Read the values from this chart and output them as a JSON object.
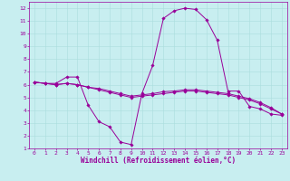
{
  "background_color": "#c8eef0",
  "line_color": "#990099",
  "xlabel": "Windchill (Refroidissement éolien,°C)",
  "xlim": [
    -0.5,
    23.5
  ],
  "ylim": [
    1,
    12.5
  ],
  "xticks": [
    0,
    1,
    2,
    3,
    4,
    5,
    6,
    7,
    8,
    9,
    10,
    11,
    12,
    13,
    14,
    15,
    16,
    17,
    18,
    19,
    20,
    21,
    22,
    23
  ],
  "yticks": [
    1,
    2,
    3,
    4,
    5,
    6,
    7,
    8,
    9,
    10,
    11,
    12
  ],
  "series": [
    {
      "x": [
        0,
        1,
        2,
        3,
        4,
        5,
        6,
        7,
        8,
        9,
        10,
        11,
        12,
        13,
        14,
        15,
        16,
        17,
        18,
        19,
        20,
        21,
        22,
        23
      ],
      "y": [
        6.2,
        6.1,
        6.1,
        6.6,
        6.6,
        4.4,
        3.1,
        2.7,
        1.5,
        1.3,
        5.3,
        7.5,
        11.2,
        11.8,
        12.0,
        11.9,
        11.1,
        9.5,
        5.5,
        5.5,
        4.3,
        4.1,
        3.7,
        3.6
      ]
    },
    {
      "x": [
        0,
        1,
        2,
        3,
        4,
        5,
        6,
        7,
        8,
        9,
        10,
        11,
        12,
        13,
        14,
        15,
        16,
        17,
        18,
        19,
        20,
        21,
        22,
        23
      ],
      "y": [
        6.2,
        6.1,
        6.0,
        6.1,
        6.0,
        5.8,
        5.6,
        5.4,
        5.2,
        5.0,
        5.1,
        5.2,
        5.3,
        5.4,
        5.5,
        5.5,
        5.4,
        5.3,
        5.2,
        5.0,
        4.8,
        4.5,
        4.1,
        3.7
      ]
    },
    {
      "x": [
        0,
        1,
        2,
        3,
        4,
        5,
        6,
        7,
        8,
        9,
        10,
        11,
        12,
        13,
        14,
        15,
        16,
        17,
        18,
        19,
        20,
        21,
        22,
        23
      ],
      "y": [
        6.2,
        6.1,
        6.0,
        6.1,
        6.0,
        5.8,
        5.7,
        5.5,
        5.3,
        5.1,
        5.2,
        5.3,
        5.45,
        5.5,
        5.6,
        5.6,
        5.5,
        5.4,
        5.3,
        5.1,
        4.9,
        4.6,
        4.2,
        3.7
      ]
    }
  ],
  "grid_color": "#aadddd",
  "tick_fontsize": 4.5,
  "label_fontsize": 5.5,
  "markersize": 1.8,
  "linewidth": 0.7
}
